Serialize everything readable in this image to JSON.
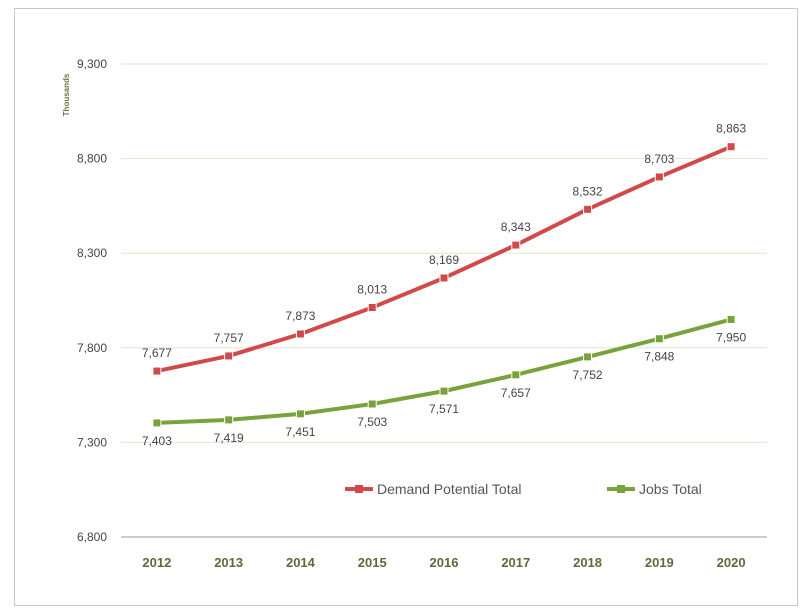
{
  "chart_data": {
    "type": "line",
    "title": "",
    "xlabel": "",
    "ylabel": "Thousands",
    "categories": [
      "2012",
      "2013",
      "2014",
      "2015",
      "2016",
      "2017",
      "2018",
      "2019",
      "2020"
    ],
    "ylim": [
      6800,
      9300
    ],
    "yticks": [
      6800,
      7300,
      7800,
      8300,
      8800,
      9300
    ],
    "ytick_labels": [
      "6,800",
      "7,300",
      "7,800",
      "8,300",
      "8,800",
      "9,300"
    ],
    "grid": true,
    "legend_position": "bottom-right",
    "series": [
      {
        "name": "Demand Potential Total",
        "color": "#d04a4a",
        "values": [
          7677,
          7757,
          7873,
          8013,
          8169,
          8343,
          8532,
          8703,
          8863
        ],
        "labels": [
          "7,677",
          "7,757",
          "7,873",
          "8,013",
          "8,169",
          "8,343",
          "8,532",
          "8,703",
          "8,863"
        ],
        "label_position": "above"
      },
      {
        "name": "Jobs Total",
        "color": "#7aa23c",
        "values": [
          7403,
          7419,
          7451,
          7503,
          7571,
          7657,
          7752,
          7848,
          7950
        ],
        "labels": [
          "7,403",
          "7,419",
          "7,451",
          "7,503",
          "7,571",
          "7,657",
          "7,752",
          "7,848",
          "7,950"
        ],
        "label_position": "below"
      }
    ]
  }
}
